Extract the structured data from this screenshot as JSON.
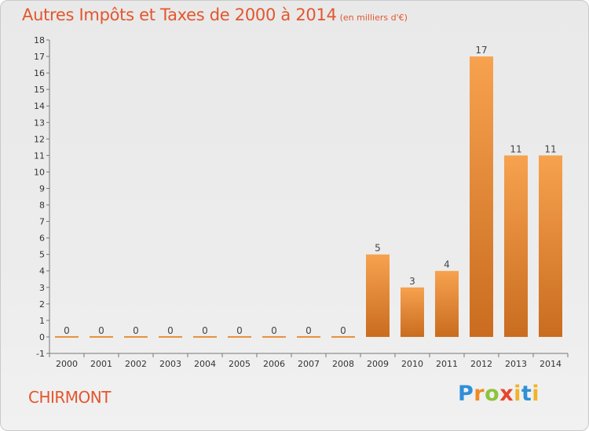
{
  "header": {
    "title": "Autres Impôts et Taxes de 2000 à 2014",
    "subtitle": "(en milliers d'€)"
  },
  "footer": {
    "town": "CHIRMONT",
    "logo_letters": [
      "P",
      "r",
      "o",
      "x",
      "i",
      "t",
      "i"
    ]
  },
  "colors": {
    "accent": "#e3562d",
    "bar_light": "#f7a24f",
    "bar_dark": "#c96c1f"
  },
  "chart_data": {
    "type": "bar",
    "title": "Autres Impôts et Taxes de 2000 à 2014",
    "subtitle": "(en milliers d'€)",
    "xlabel": "",
    "ylabel": "",
    "categories": [
      "2000",
      "2001",
      "2002",
      "2003",
      "2004",
      "2005",
      "2006",
      "2007",
      "2008",
      "2009",
      "2010",
      "2011",
      "2012",
      "2013",
      "2014"
    ],
    "values": [
      0,
      0,
      0,
      0,
      0,
      0,
      0,
      0,
      0,
      5,
      3,
      4,
      17,
      11,
      11
    ],
    "ylim": [
      -1,
      18
    ],
    "yticks": [
      "-1",
      "0",
      "1",
      "2",
      "3",
      "4",
      "5",
      "6",
      "7",
      "8",
      "9",
      "10",
      "11",
      "12",
      "13",
      "14",
      "15",
      "16",
      "17",
      "18"
    ],
    "grid": false,
    "legend": "none"
  }
}
